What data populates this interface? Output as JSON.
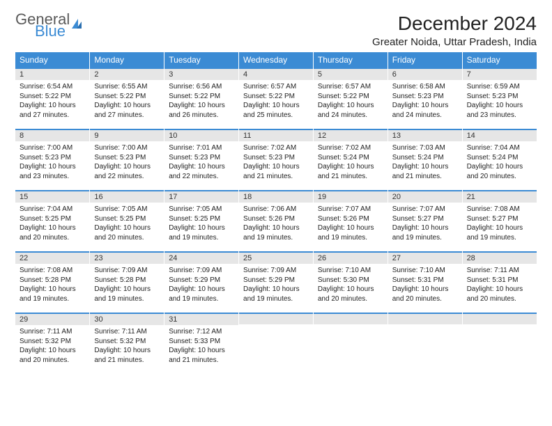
{
  "brand": {
    "word1": "General",
    "word2": "Blue"
  },
  "title": "December 2024",
  "location": "Greater Noida, Uttar Pradesh, India",
  "colors": {
    "header_blue": "#3b8bd4",
    "day_bar_gray": "#e6e6e6",
    "text": "#222222",
    "logo_gray": "#5a5a5a"
  },
  "weekdays": [
    "Sunday",
    "Monday",
    "Tuesday",
    "Wednesday",
    "Thursday",
    "Friday",
    "Saturday"
  ],
  "weeks": [
    [
      {
        "n": "1",
        "sunrise": "Sunrise: 6:54 AM",
        "sunset": "Sunset: 5:22 PM",
        "daylight": "Daylight: 10 hours and 27 minutes."
      },
      {
        "n": "2",
        "sunrise": "Sunrise: 6:55 AM",
        "sunset": "Sunset: 5:22 PM",
        "daylight": "Daylight: 10 hours and 27 minutes."
      },
      {
        "n": "3",
        "sunrise": "Sunrise: 6:56 AM",
        "sunset": "Sunset: 5:22 PM",
        "daylight": "Daylight: 10 hours and 26 minutes."
      },
      {
        "n": "4",
        "sunrise": "Sunrise: 6:57 AM",
        "sunset": "Sunset: 5:22 PM",
        "daylight": "Daylight: 10 hours and 25 minutes."
      },
      {
        "n": "5",
        "sunrise": "Sunrise: 6:57 AM",
        "sunset": "Sunset: 5:22 PM",
        "daylight": "Daylight: 10 hours and 24 minutes."
      },
      {
        "n": "6",
        "sunrise": "Sunrise: 6:58 AM",
        "sunset": "Sunset: 5:23 PM",
        "daylight": "Daylight: 10 hours and 24 minutes."
      },
      {
        "n": "7",
        "sunrise": "Sunrise: 6:59 AM",
        "sunset": "Sunset: 5:23 PM",
        "daylight": "Daylight: 10 hours and 23 minutes."
      }
    ],
    [
      {
        "n": "8",
        "sunrise": "Sunrise: 7:00 AM",
        "sunset": "Sunset: 5:23 PM",
        "daylight": "Daylight: 10 hours and 23 minutes."
      },
      {
        "n": "9",
        "sunrise": "Sunrise: 7:00 AM",
        "sunset": "Sunset: 5:23 PM",
        "daylight": "Daylight: 10 hours and 22 minutes."
      },
      {
        "n": "10",
        "sunrise": "Sunrise: 7:01 AM",
        "sunset": "Sunset: 5:23 PM",
        "daylight": "Daylight: 10 hours and 22 minutes."
      },
      {
        "n": "11",
        "sunrise": "Sunrise: 7:02 AM",
        "sunset": "Sunset: 5:23 PM",
        "daylight": "Daylight: 10 hours and 21 minutes."
      },
      {
        "n": "12",
        "sunrise": "Sunrise: 7:02 AM",
        "sunset": "Sunset: 5:24 PM",
        "daylight": "Daylight: 10 hours and 21 minutes."
      },
      {
        "n": "13",
        "sunrise": "Sunrise: 7:03 AM",
        "sunset": "Sunset: 5:24 PM",
        "daylight": "Daylight: 10 hours and 21 minutes."
      },
      {
        "n": "14",
        "sunrise": "Sunrise: 7:04 AM",
        "sunset": "Sunset: 5:24 PM",
        "daylight": "Daylight: 10 hours and 20 minutes."
      }
    ],
    [
      {
        "n": "15",
        "sunrise": "Sunrise: 7:04 AM",
        "sunset": "Sunset: 5:25 PM",
        "daylight": "Daylight: 10 hours and 20 minutes."
      },
      {
        "n": "16",
        "sunrise": "Sunrise: 7:05 AM",
        "sunset": "Sunset: 5:25 PM",
        "daylight": "Daylight: 10 hours and 20 minutes."
      },
      {
        "n": "17",
        "sunrise": "Sunrise: 7:05 AM",
        "sunset": "Sunset: 5:25 PM",
        "daylight": "Daylight: 10 hours and 19 minutes."
      },
      {
        "n": "18",
        "sunrise": "Sunrise: 7:06 AM",
        "sunset": "Sunset: 5:26 PM",
        "daylight": "Daylight: 10 hours and 19 minutes."
      },
      {
        "n": "19",
        "sunrise": "Sunrise: 7:07 AM",
        "sunset": "Sunset: 5:26 PM",
        "daylight": "Daylight: 10 hours and 19 minutes."
      },
      {
        "n": "20",
        "sunrise": "Sunrise: 7:07 AM",
        "sunset": "Sunset: 5:27 PM",
        "daylight": "Daylight: 10 hours and 19 minutes."
      },
      {
        "n": "21",
        "sunrise": "Sunrise: 7:08 AM",
        "sunset": "Sunset: 5:27 PM",
        "daylight": "Daylight: 10 hours and 19 minutes."
      }
    ],
    [
      {
        "n": "22",
        "sunrise": "Sunrise: 7:08 AM",
        "sunset": "Sunset: 5:28 PM",
        "daylight": "Daylight: 10 hours and 19 minutes."
      },
      {
        "n": "23",
        "sunrise": "Sunrise: 7:09 AM",
        "sunset": "Sunset: 5:28 PM",
        "daylight": "Daylight: 10 hours and 19 minutes."
      },
      {
        "n": "24",
        "sunrise": "Sunrise: 7:09 AM",
        "sunset": "Sunset: 5:29 PM",
        "daylight": "Daylight: 10 hours and 19 minutes."
      },
      {
        "n": "25",
        "sunrise": "Sunrise: 7:09 AM",
        "sunset": "Sunset: 5:29 PM",
        "daylight": "Daylight: 10 hours and 19 minutes."
      },
      {
        "n": "26",
        "sunrise": "Sunrise: 7:10 AM",
        "sunset": "Sunset: 5:30 PM",
        "daylight": "Daylight: 10 hours and 20 minutes."
      },
      {
        "n": "27",
        "sunrise": "Sunrise: 7:10 AM",
        "sunset": "Sunset: 5:31 PM",
        "daylight": "Daylight: 10 hours and 20 minutes."
      },
      {
        "n": "28",
        "sunrise": "Sunrise: 7:11 AM",
        "sunset": "Sunset: 5:31 PM",
        "daylight": "Daylight: 10 hours and 20 minutes."
      }
    ],
    [
      {
        "n": "29",
        "sunrise": "Sunrise: 7:11 AM",
        "sunset": "Sunset: 5:32 PM",
        "daylight": "Daylight: 10 hours and 20 minutes."
      },
      {
        "n": "30",
        "sunrise": "Sunrise: 7:11 AM",
        "sunset": "Sunset: 5:32 PM",
        "daylight": "Daylight: 10 hours and 21 minutes."
      },
      {
        "n": "31",
        "sunrise": "Sunrise: 7:12 AM",
        "sunset": "Sunset: 5:33 PM",
        "daylight": "Daylight: 10 hours and 21 minutes."
      },
      null,
      null,
      null,
      null
    ]
  ]
}
